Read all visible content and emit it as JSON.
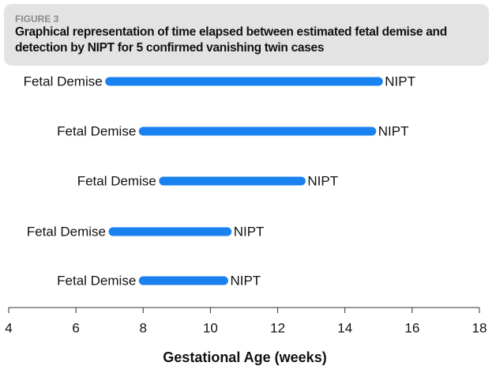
{
  "figure_label": "FIGURE 3",
  "chart_data": {
    "type": "range",
    "title": "Graphical representation of time elapsed between estimated fetal demise and detection by NIPT for 5 confirmed vanishing twin cases",
    "start_label": "Fetal Demise",
    "end_label": "NIPT",
    "start": [
      7.0,
      8.0,
      8.6,
      7.1,
      8.0
    ],
    "end": [
      15.0,
      14.8,
      12.7,
      10.5,
      10.4
    ],
    "color": "#1a82f0",
    "xlabel": "Gestational Age (weeks)",
    "xlim": [
      4,
      18
    ],
    "xticks": [
      4,
      6,
      8,
      10,
      12,
      14,
      16,
      18
    ]
  }
}
